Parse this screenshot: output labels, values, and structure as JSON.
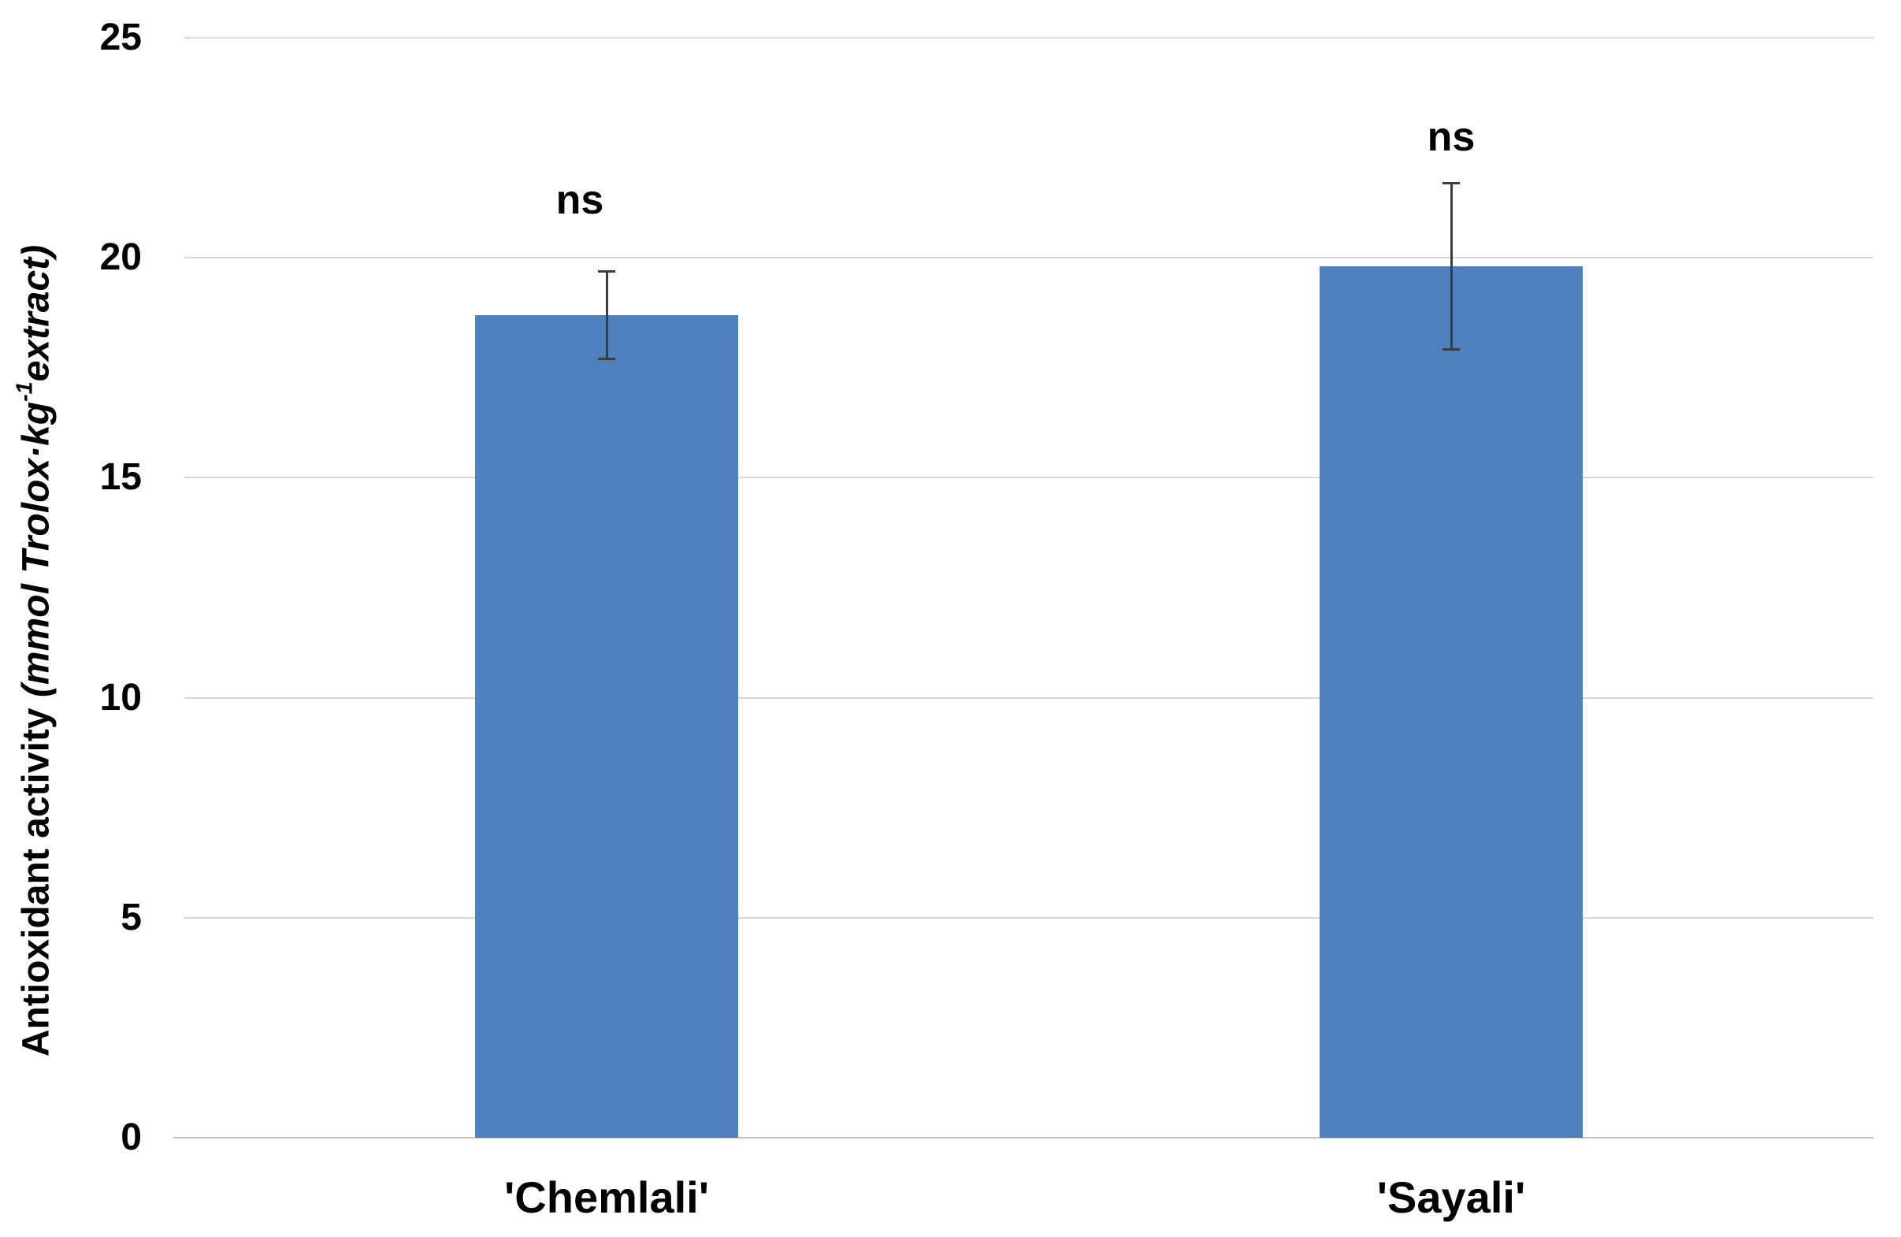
{
  "chart_data": {
    "type": "bar",
    "title": "",
    "categories": [
      "'Chemlali'",
      "'Sayali'"
    ],
    "values": [
      18.7,
      19.8
    ],
    "errors": [
      1.0,
      1.9
    ],
    "bar_annotations": [
      "ns",
      "ns"
    ],
    "ylabel": "Antioxidant activity (mmol Trolox·kg⁻¹extract)",
    "ylabel_parts": {
      "plain": "Antioxidant activity ",
      "unit_prefix": "(mmol Trolox·kg",
      "unit_sup": "-1",
      "unit_suffix": "extract)"
    },
    "xlabel": "",
    "yticks": [
      25,
      20,
      15,
      10,
      5,
      0
    ],
    "ylim": [
      0,
      25
    ],
    "grid": true,
    "legend": "none",
    "colors": {
      "bar": "#4e80bd",
      "gridline": "#d9d9d9",
      "axis_line": "#c3c3c3",
      "error_bar": "#3d3d3d",
      "text": "#000000"
    }
  }
}
